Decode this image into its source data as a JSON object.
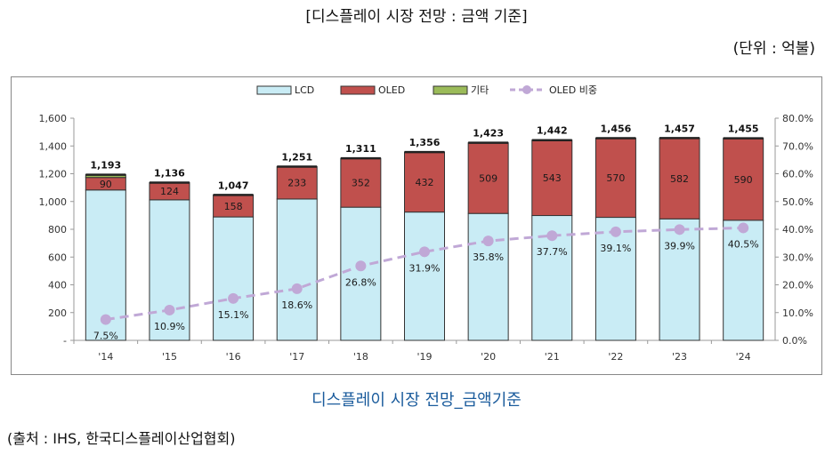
{
  "header": {
    "title": "[디스플레이 시장 전망 : 금액 기준]",
    "unit": "(단위 : 억불)"
  },
  "caption": "디스플레이 시장 전망_금액기준",
  "source": "(출처 : IHS, 한국디스플레이산업협회)",
  "colors": {
    "lcd": "#c9ecf5",
    "oled": "#c0504d",
    "other": "#9bbb59",
    "share_line": "#c0a8d6",
    "bar_edge": "#333333"
  },
  "chart_data": {
    "type": "bar",
    "stacked": true,
    "categories": [
      "'14",
      "'15",
      "'16",
      "'17",
      "'18",
      "'19",
      "'20",
      "'21",
      "'22",
      "'23",
      "'24"
    ],
    "series": [
      {
        "name": "LCD",
        "values": [
          1083,
          1012,
          889,
          1018,
          959,
          924,
          914,
          899,
          886,
          875,
          865
        ]
      },
      {
        "name": "OLED",
        "values": [
          90,
          124,
          158,
          233,
          352,
          432,
          509,
          543,
          570,
          582,
          590
        ]
      },
      {
        "name": "기타",
        "values": [
          20,
          0,
          0,
          0,
          0,
          0,
          0,
          0,
          0,
          0,
          0
        ]
      }
    ],
    "oled_labels": [
      "90",
      "124",
      "158",
      "233",
      "352",
      "432",
      "509",
      "543",
      "570",
      "582",
      "590"
    ],
    "totals": [
      1193,
      1136,
      1047,
      1251,
      1311,
      1356,
      1423,
      1442,
      1456,
      1457,
      1455
    ],
    "total_labels": [
      "1,193",
      "1,136",
      "1,047",
      "1,251",
      "1,311",
      "1,356",
      "1,423",
      "1,442",
      "1,456",
      "1,457",
      "1,455"
    ],
    "line_series": {
      "name": "OLED 비중",
      "values": [
        7.5,
        10.9,
        15.1,
        18.6,
        26.8,
        31.9,
        35.8,
        37.7,
        39.1,
        39.9,
        40.5
      ],
      "labels": [
        "7.5%",
        "10.9%",
        "15.1%",
        "18.6%",
        "26.8%",
        "31.9%",
        "35.8%",
        "37.7%",
        "39.1%",
        "39.9%",
        "40.5%"
      ]
    },
    "y_left": {
      "range": [
        0,
        1600
      ],
      "ticks": [
        0,
        200,
        400,
        600,
        800,
        1000,
        1200,
        1400,
        1600
      ],
      "tick_labels": [
        "-",
        "200",
        "400",
        "600",
        "800",
        "1,000",
        "1,200",
        "1,400",
        "1,600"
      ]
    },
    "y_right": {
      "range": [
        0,
        80
      ],
      "ticks": [
        0,
        10,
        20,
        30,
        40,
        50,
        60,
        70,
        80
      ],
      "tick_labels": [
        "0.0%",
        "10.0%",
        "20.0%",
        "30.0%",
        "40.0%",
        "50.0%",
        "60.0%",
        "70.0%",
        "80.0%"
      ]
    },
    "legend": {
      "position": "top-center",
      "entries": [
        "LCD",
        "OLED",
        "기타",
        "OLED 비중"
      ]
    },
    "grid": false
  }
}
